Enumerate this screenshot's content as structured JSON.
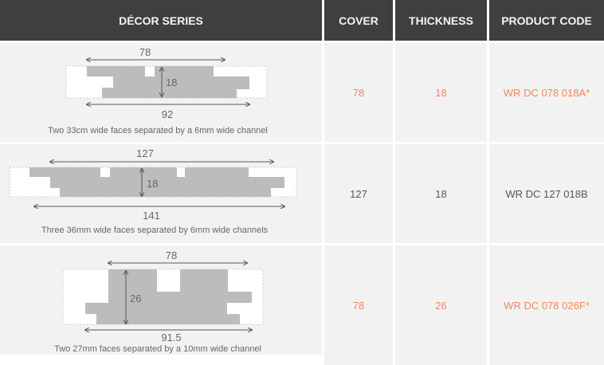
{
  "header": {
    "series": "DÉCOR SERIES",
    "cover": "COVER",
    "thickness": "THICKNESS",
    "code": "PRODUCT CODE"
  },
  "colors": {
    "header_bg": "#3f3f41",
    "row_bg": "#f2f2f2",
    "highlight": "#f0875a",
    "profile": "#bcbcbe"
  },
  "rows": [
    {
      "cover_dim": "78",
      "height_dim": "18",
      "width_dim": "92",
      "caption": "Two 33cm wide faces separated by a 6mm wide channel",
      "cover": "78",
      "thickness": "18",
      "code": "WR DC 078 018A*",
      "highlight": true
    },
    {
      "cover_dim": "127",
      "height_dim": "18",
      "width_dim": "141",
      "caption": "Three 36mm wide faces separated by 6mm wide channels",
      "cover": "127",
      "thickness": "18",
      "code": "WR DC 127 018B",
      "highlight": false
    },
    {
      "cover_dim": "78",
      "height_dim": "26",
      "width_dim": "91.5",
      "caption": "Two 27mm faces separated by a 10mm wide channel",
      "cover": "78",
      "thickness": "26",
      "code": "WR DC 078 026F*",
      "highlight": true
    }
  ]
}
